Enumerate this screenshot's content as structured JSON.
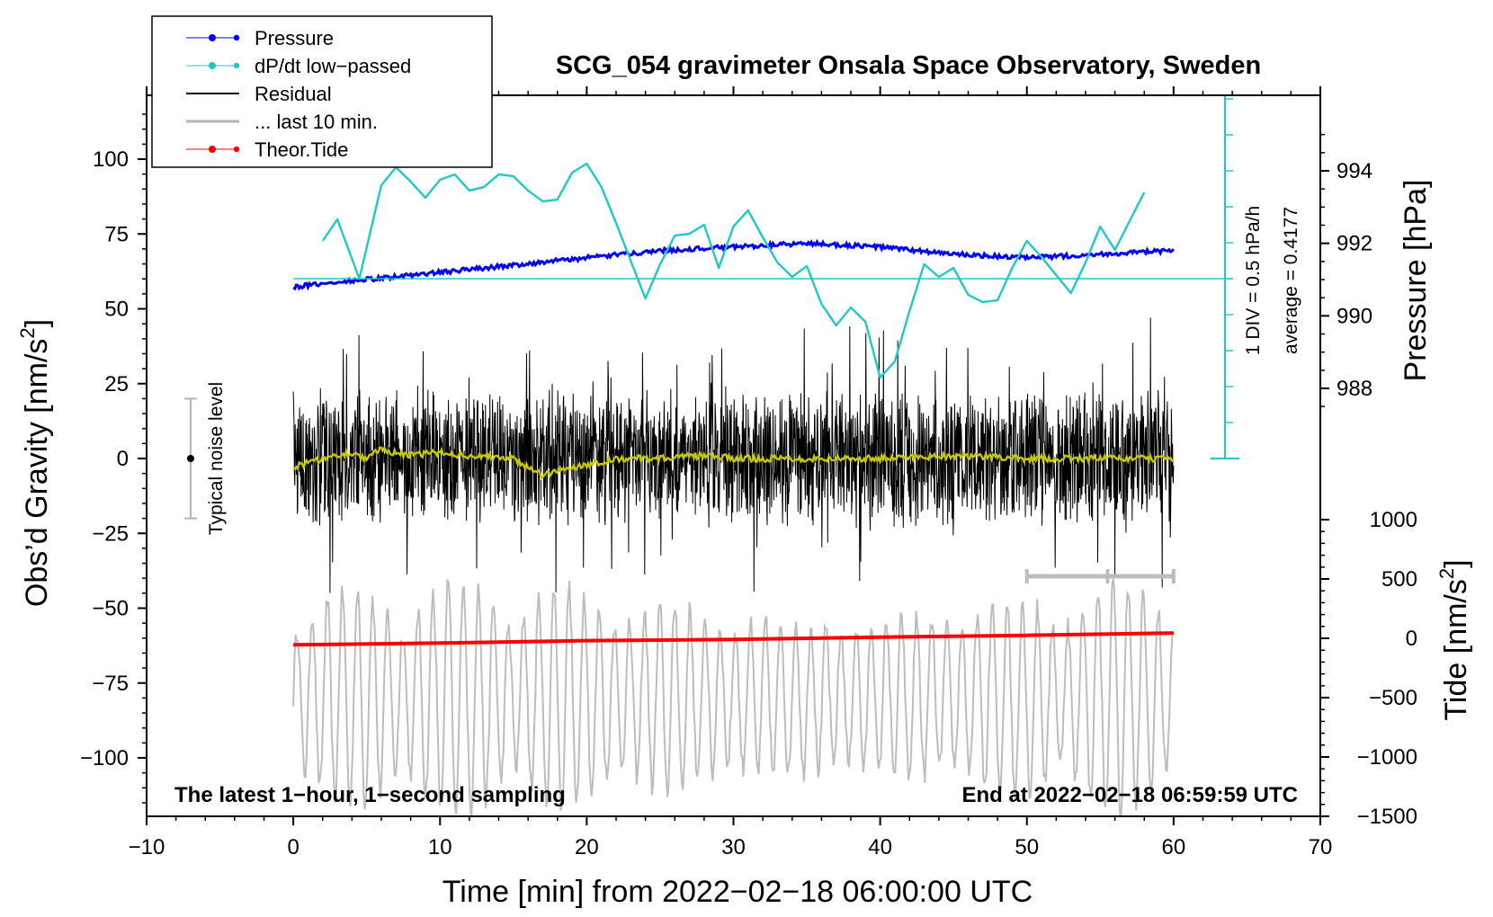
{
  "chart_data": {
    "type": "line",
    "title": "SCG_054 gravimeter Onsala Space Observatory, Sweden",
    "xlabel": "Time [min] from 2022−02−18 06:00:00 UTC",
    "xlim": [
      -10,
      70
    ],
    "xticks": [
      "−10",
      "0",
      "10",
      "20",
      "30",
      "40",
      "50",
      "60",
      "70"
    ],
    "ylabel_left": "Obs’d Gravity [nm/s",
    "ylabel_left_sup": "2",
    "ylabel_left_end": "]",
    "ylim_left": [
      -120,
      120
    ],
    "yticks_left": [
      {
        "v": 100,
        "t": "100"
      },
      {
        "v": 75,
        "t": "75"
      },
      {
        "v": 50,
        "t": "50"
      },
      {
        "v": 25,
        "t": "25"
      },
      {
        "v": 0,
        "t": "0"
      },
      {
        "v": -25,
        "t": "−25"
      },
      {
        "v": -50,
        "t": "−50"
      },
      {
        "v": -75,
        "t": "−75"
      },
      {
        "v": -100,
        "t": "−100"
      }
    ],
    "ylabel_pressure": "Pressure [hPa]",
    "yticks_pressure": [
      {
        "v": 994,
        "t": "994"
      },
      {
        "v": 992,
        "t": "992"
      },
      {
        "v": 990,
        "t": "990"
      },
      {
        "v": 988,
        "t": "988"
      }
    ],
    "ylabel_tide": "Tide [nm/s",
    "ylabel_tide_sup": "2",
    "ylabel_tide_end": "]",
    "yticks_tide": [
      {
        "v": 1000,
        "t": "1000"
      },
      {
        "v": 500,
        "t": "500"
      },
      {
        "v": 0,
        "t": "0"
      },
      {
        "v": -500,
        "t": "−500"
      },
      {
        "v": -1000,
        "t": "−1000"
      },
      {
        "v": -1500,
        "t": "−1500"
      }
    ],
    "dpdt_scale": "1 DIV = 0.5 hPa/h",
    "dpdt_average": "average = 0.4177",
    "noise_label": "Typical noise level",
    "noise_level": [
      -20,
      20
    ],
    "bottom_left_note": "The latest 1−hour, 1−second sampling",
    "bottom_right_note": "End at 2022−02−18 06:59:59 UTC",
    "last10_bar": [
      50,
      60
    ],
    "legend": [
      {
        "label": "Pressure",
        "color": "#0000ff",
        "marker": true
      },
      {
        "label": "dP/dt low−passed",
        "color": "#20c8c8",
        "marker": true
      },
      {
        "label": "Residual",
        "color": "#000000",
        "marker": false
      },
      {
        "label": "... last 10 min.",
        "color": "#b4b4b4",
        "marker": false
      },
      {
        "label": "Theor.Tide",
        "color": "#ff0000",
        "marker": true
      }
    ],
    "series": [
      {
        "name": "Pressure",
        "axis": "pressure",
        "unit": "hPa",
        "x": [
          0,
          5,
          10,
          15,
          20,
          25,
          30,
          35,
          40,
          45,
          50,
          55,
          60
        ],
        "values": [
          990.8,
          991.0,
          991.2,
          991.4,
          991.6,
          991.8,
          991.9,
          992.0,
          991.9,
          991.7,
          991.6,
          991.7,
          991.8
        ]
      },
      {
        "name": "dP/dt low-passed",
        "axis": "dpdt",
        "unit": "hPa/h",
        "x": [
          2,
          3,
          4.5,
          6,
          7,
          8,
          9,
          10,
          11,
          12,
          13,
          14,
          15,
          16,
          17,
          18,
          19,
          20,
          21,
          22,
          23,
          24,
          25,
          26,
          27,
          28,
          29,
          30,
          31,
          32,
          33,
          34,
          35,
          36,
          37,
          38,
          39,
          40,
          41,
          42,
          43,
          44,
          45,
          46,
          47,
          48,
          49,
          50,
          51,
          52,
          53,
          54,
          55,
          56,
          57,
          58
        ],
        "values": [
          1.05,
          1.65,
          0.0,
          2.6,
          3.1,
          2.7,
          2.25,
          2.75,
          2.9,
          2.45,
          2.55,
          2.9,
          2.85,
          2.45,
          2.15,
          2.2,
          2.95,
          3.2,
          2.55,
          1.55,
          0.5,
          -0.55,
          0.4,
          1.2,
          1.25,
          1.5,
          0.3,
          1.45,
          1.9,
          1.15,
          0.45,
          0.05,
          0.35,
          -0.7,
          -1.3,
          -0.8,
          -1.2,
          -2.75,
          -2.3,
          -0.9,
          0.4,
          0.05,
          0.3,
          -0.45,
          -0.65,
          -0.6,
          0.3,
          1.05,
          0.6,
          0.1,
          -0.4,
          0.45,
          1.45,
          0.8,
          1.6,
          2.4
        ]
      },
      {
        "name": "Residual",
        "axis": "gravity",
        "unit": "nm/s2",
        "x": [
          0,
          60
        ],
        "values_range": [
          -45,
          55
        ],
        "trend": [
          0,
          0
        ]
      },
      {
        "name": "Smoothed residual",
        "axis": "gravity",
        "unit": "nm/s2",
        "x": [
          0,
          2,
          4,
          5,
          6,
          8,
          10,
          12,
          15,
          16,
          17,
          18,
          20,
          22,
          25,
          28,
          30,
          35,
          40,
          45,
          50,
          55,
          60
        ],
        "values": [
          -3,
          0,
          2,
          0,
          3,
          1,
          2,
          1,
          0,
          -3,
          -6,
          -4,
          -2,
          0,
          0,
          1,
          0,
          0,
          0,
          1,
          0,
          0,
          0
        ]
      },
      {
        "name": "... last 10 min.",
        "axis": "tide",
        "unit": "nm/s2",
        "x": [
          0,
          60
        ],
        "values_range": [
          -1500,
          500
        ]
      },
      {
        "name": "Theor.Tide",
        "axis": "tide",
        "unit": "nm/s2",
        "x": [
          0,
          10,
          20,
          30,
          40,
          50,
          60
        ],
        "values": [
          -55,
          -40,
          -20,
          -10,
          10,
          25,
          45
        ]
      }
    ]
  }
}
